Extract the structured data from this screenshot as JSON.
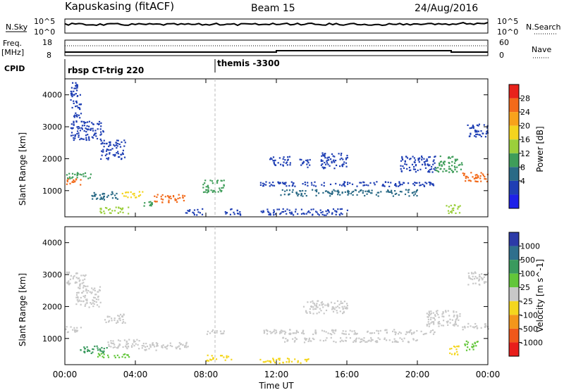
{
  "header": {
    "station": "Kapuskasing (fitACF)",
    "beam": "Beam 15",
    "date": "24/Aug/2016"
  },
  "panels": {
    "nsky": {
      "left_label": "N.Sky",
      "right_label": "N.Search",
      "left_ticks": [
        "10^5",
        "10^0"
      ],
      "right_ticks": [
        "10^5",
        "10^0"
      ]
    },
    "freq": {
      "left_label_1": "Freq.",
      "left_label_2": "[MHz]",
      "right_label": "Nave",
      "left_ticks": [
        "18",
        "8"
      ],
      "right_ticks": [
        "60",
        "0"
      ]
    },
    "cpid": {
      "label": "CPID",
      "entries": [
        "rbsp CT-trig 220",
        "themis -3300"
      ]
    }
  },
  "power_colorbar": {
    "label": "Power [dB]",
    "ticks": [
      "28",
      "24",
      "20",
      "16",
      "12",
      "8",
      "4"
    ],
    "colors": [
      "#e8221b",
      "#f26a1a",
      "#f8a21b",
      "#f4d41e",
      "#9bcf3b",
      "#3f9d5a",
      "#2a6a86",
      "#1f3fb4",
      "#1e20e8"
    ]
  },
  "velocity_colorbar": {
    "label": "Velocity [m s^-1]",
    "ticks": [
      "1000",
      "500",
      "100",
      "25",
      "-25",
      "-100",
      "-500",
      "-1000"
    ],
    "colors": [
      "#2c3aa8",
      "#2f6f8d",
      "#3a9a5e",
      "#62c63a",
      "#c8c8c8",
      "#f4d61e",
      "#f3961b",
      "#f0581b",
      "#e81e1b"
    ]
  },
  "chart_data": {
    "type": "heatmap",
    "title": "Kapuskasing (fitACF)  Beam 15  24/Aug/2016",
    "xlabel": "Time UT",
    "ylabel": "Slant Range [km]",
    "x_ticks": [
      "00:00",
      "04:00",
      "08:00",
      "12:00",
      "16:00",
      "20:00",
      "00:00"
    ],
    "y_ticks": [
      "4000",
      "3000",
      "2000",
      "1000"
    ],
    "xlim_hours": [
      0,
      24
    ],
    "ylim_km": [
      180,
      4500
    ],
    "panels": [
      {
        "name": "Power",
        "regions": [
          {
            "t0": 0.0,
            "t1": 0.9,
            "r0": 1200,
            "r1": 1400,
            "c": "#f26a1a"
          },
          {
            "t0": 0.0,
            "t1": 1.5,
            "r0": 1400,
            "r1": 1600,
            "c": "#3f9d5a"
          },
          {
            "t0": 0.3,
            "t1": 2.2,
            "r0": 2600,
            "r1": 3200,
            "c": "#1f3fb4"
          },
          {
            "t0": 0.3,
            "t1": 0.9,
            "r0": 3300,
            "r1": 4400,
            "c": "#1f3fb4"
          },
          {
            "t0": 1.5,
            "t1": 3.0,
            "r0": 700,
            "r1": 1000,
            "c": "#2a6a86"
          },
          {
            "t0": 2.0,
            "t1": 3.4,
            "r0": 2000,
            "r1": 2600,
            "c": "#1f3fb4"
          },
          {
            "t0": 1.8,
            "t1": 3.6,
            "r0": 300,
            "r1": 500,
            "c": "#9bcf3b"
          },
          {
            "t0": 3.2,
            "t1": 4.4,
            "r0": 800,
            "r1": 1000,
            "c": "#f4d41e"
          },
          {
            "t0": 4.4,
            "t1": 5.0,
            "r0": 500,
            "r1": 700,
            "c": "#3f9d5a"
          },
          {
            "t0": 5.0,
            "t1": 6.8,
            "r0": 650,
            "r1": 900,
            "c": "#f26a1a"
          },
          {
            "t0": 6.8,
            "t1": 7.8,
            "r0": 250,
            "r1": 450,
            "c": "#1f3fb4"
          },
          {
            "t0": 7.8,
            "t1": 9.0,
            "r0": 950,
            "r1": 1350,
            "c": "#3f9d5a"
          },
          {
            "t0": 9.0,
            "t1": 10.0,
            "r0": 250,
            "r1": 450,
            "c": "#1f3fb4"
          },
          {
            "t0": 11.0,
            "t1": 21.0,
            "r0": 1150,
            "r1": 1300,
            "c": "#1f3fb4"
          },
          {
            "t0": 12.2,
            "t1": 20.0,
            "r0": 850,
            "r1": 1050,
            "c": "#2a6a86"
          },
          {
            "t0": 11.0,
            "t1": 16.0,
            "r0": 250,
            "r1": 450,
            "c": "#1f3fb4"
          },
          {
            "t0": 11.6,
            "t1": 12.8,
            "r0": 1800,
            "r1": 2100,
            "c": "#1f3fb4"
          },
          {
            "t0": 13.2,
            "t1": 14.0,
            "r0": 1750,
            "r1": 2000,
            "c": "#1f3fb4"
          },
          {
            "t0": 14.5,
            "t1": 16.0,
            "r0": 1700,
            "r1": 2200,
            "c": "#1f3fb4"
          },
          {
            "t0": 19.0,
            "t1": 21.0,
            "r0": 1600,
            "r1": 2100,
            "c": "#1f3fb4"
          },
          {
            "t0": 21.0,
            "t1": 22.5,
            "r0": 1600,
            "r1": 2100,
            "c": "#3f9d5a"
          },
          {
            "t0": 22.5,
            "t1": 24.0,
            "r0": 1300,
            "r1": 1600,
            "c": "#f26a1a"
          },
          {
            "t0": 22.8,
            "t1": 24.0,
            "r0": 2700,
            "r1": 3100,
            "c": "#1f3fb4"
          },
          {
            "t0": 21.6,
            "t1": 22.4,
            "r0": 300,
            "r1": 600,
            "c": "#9bcf3b"
          }
        ]
      },
      {
        "name": "Velocity",
        "regions": [
          {
            "t0": 0.0,
            "t1": 1.0,
            "r0": 1200,
            "r1": 1400,
            "c": "#c8c8c8"
          },
          {
            "t0": 0.0,
            "t1": 1.2,
            "r0": 2700,
            "r1": 3100,
            "c": "#c8c8c8"
          },
          {
            "t0": 0.6,
            "t1": 2.0,
            "r0": 2000,
            "r1": 2700,
            "c": "#c8c8c8"
          },
          {
            "t0": 0.8,
            "t1": 2.4,
            "r0": 550,
            "r1": 800,
            "c": "#3a9a5e"
          },
          {
            "t0": 2.2,
            "t1": 3.4,
            "r0": 1500,
            "r1": 1800,
            "c": "#c8c8c8"
          },
          {
            "t0": 2.4,
            "t1": 4.4,
            "r0": 700,
            "r1": 1000,
            "c": "#c8c8c8"
          },
          {
            "t0": 4.4,
            "t1": 7.0,
            "r0": 650,
            "r1": 900,
            "c": "#c8c8c8"
          },
          {
            "t0": 1.8,
            "t1": 3.6,
            "r0": 400,
            "r1": 550,
            "c": "#62c63a"
          },
          {
            "t0": 7.8,
            "t1": 9.0,
            "r0": 1150,
            "r1": 1300,
            "c": "#c8c8c8"
          },
          {
            "t0": 8.0,
            "t1": 9.5,
            "r0": 300,
            "r1": 500,
            "c": "#f4d61e"
          },
          {
            "t0": 11.0,
            "t1": 21.0,
            "r0": 1150,
            "r1": 1300,
            "c": "#c8c8c8"
          },
          {
            "t0": 12.2,
            "t1": 20.0,
            "r0": 900,
            "r1": 1050,
            "c": "#c8c8c8"
          },
          {
            "t0": 13.5,
            "t1": 16.0,
            "r0": 1800,
            "r1": 2200,
            "c": "#c8c8c8"
          },
          {
            "t0": 11.0,
            "t1": 14.0,
            "r0": 250,
            "r1": 400,
            "c": "#f4d61e"
          },
          {
            "t0": 20.5,
            "t1": 22.5,
            "r0": 1400,
            "r1": 1900,
            "c": "#c8c8c8"
          },
          {
            "t0": 21.8,
            "t1": 22.4,
            "r0": 500,
            "r1": 800,
            "c": "#f4d61e"
          },
          {
            "t0": 22.5,
            "t1": 24.0,
            "r0": 1300,
            "r1": 1500,
            "c": "#c8c8c8"
          },
          {
            "t0": 22.6,
            "t1": 23.4,
            "r0": 650,
            "r1": 950,
            "c": "#62c63a"
          },
          {
            "t0": 22.8,
            "t1": 24.0,
            "r0": 2700,
            "r1": 3100,
            "c": "#c8c8c8"
          }
        ]
      }
    ]
  }
}
